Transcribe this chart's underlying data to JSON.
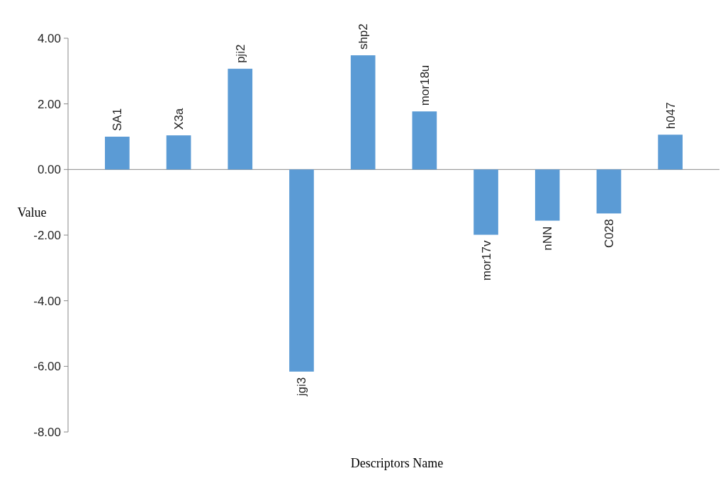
{
  "chart_data": {
    "type": "bar",
    "xlabel": "Descriptors Name",
    "ylabel": "Value",
    "categories": [
      "SA1",
      "X3a",
      "pji2",
      "jgi3",
      "shp2",
      "mor18u",
      "mor17v",
      "nNN",
      "C028",
      "h047"
    ],
    "values": [
      1.0,
      1.04,
      3.07,
      -6.16,
      3.48,
      1.77,
      -1.99,
      -1.56,
      -1.34,
      1.06
    ],
    "color": "#5b9bd5",
    "ylim": [
      -8,
      4
    ],
    "yticks": [
      {
        "value": -8,
        "label": "-8.00"
      },
      {
        "value": -6,
        "label": "-6.00"
      },
      {
        "value": -4,
        "label": "-4.00"
      },
      {
        "value": -2,
        "label": "-2.00"
      },
      {
        "value": 0,
        "label": "0.00"
      },
      {
        "value": 2,
        "label": "2.00"
      },
      {
        "value": 4,
        "label": "4.00"
      }
    ]
  }
}
